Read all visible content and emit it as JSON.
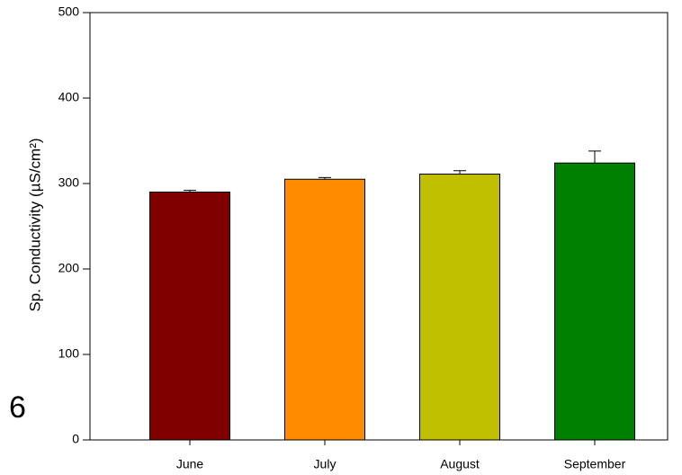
{
  "chart_data": {
    "type": "bar",
    "ylabel": "Sp. Conductivity (µS/cm²)",
    "annotation": "6",
    "categories": [
      "June",
      "July",
      "August",
      "September"
    ],
    "values": [
      290,
      305,
      311,
      324
    ],
    "errors": [
      2,
      2,
      4,
      14
    ],
    "colors": [
      "#800000",
      "#ff8c00",
      "#c0c000",
      "#008000"
    ],
    "ylim": [
      0,
      500
    ],
    "yticks": [
      0,
      100,
      200,
      300,
      400,
      500
    ]
  }
}
